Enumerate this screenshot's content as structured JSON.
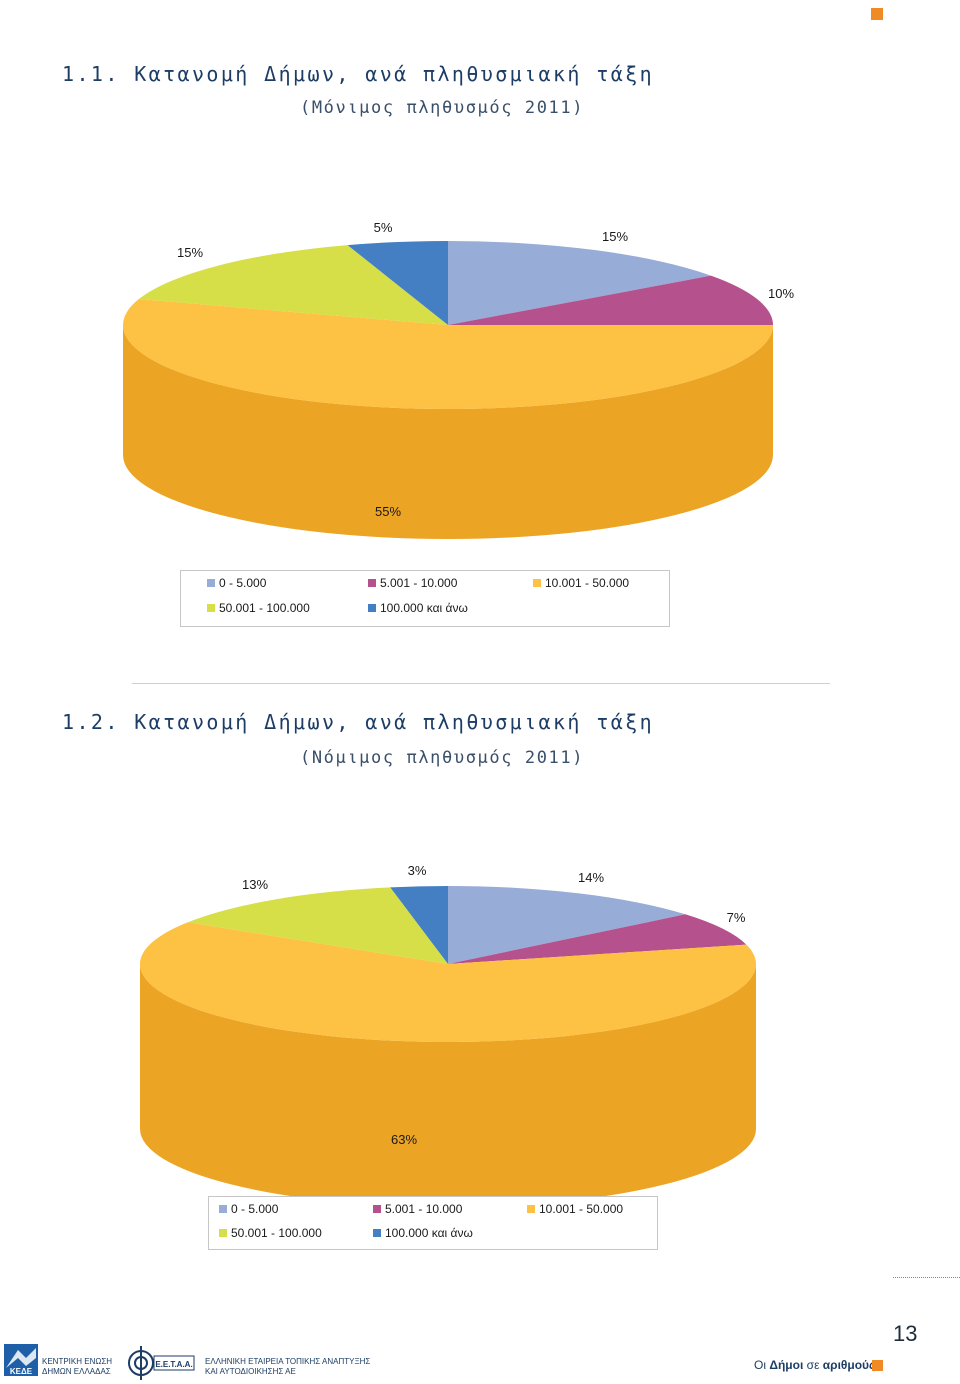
{
  "colors": {
    "series": [
      "#98ACD8",
      "#B5528E",
      "#FDC243",
      "#D6DF47",
      "#437FC2"
    ],
    "series_side": [
      "#7E92BE",
      "#963E74",
      "#EBA424",
      "#B5BE2E",
      "#2E66A6"
    ],
    "accent": "#F08A24"
  },
  "section1": {
    "title": "1.1.  Κατανομή Δήμων, ανά πληθυσμιακή τάξη",
    "subtitle": "(Μόνιμος πληθυσμός 2011)"
  },
  "section2": {
    "title": "1.2.  Κατανομή Δήμων, ανά πληθυσμιακή τάξη",
    "subtitle": "(Νόμιμος πληθυσμός 2011)"
  },
  "chart_data": [
    {
      "type": "pie",
      "title": "",
      "categories": [
        "0 - 5.000",
        "5.001 - 10.000",
        "10.001 - 50.000",
        "50.001 - 100.000",
        "100.000 και άνω"
      ],
      "values": [
        15,
        10,
        55,
        15,
        5
      ],
      "data_labels": [
        "15%",
        "10%",
        "55%",
        "15%",
        "5%"
      ],
      "legend_position": "bottom"
    },
    {
      "type": "pie",
      "title": "",
      "categories": [
        "0 - 5.000",
        "5.001 - 10.000",
        "10.001 - 50.000",
        "50.001 - 100.000",
        "100.000 και άνω"
      ],
      "values": [
        14,
        7,
        63,
        13,
        3
      ],
      "data_labels": [
        "14%",
        "7%",
        "63%",
        "13%",
        "3%"
      ],
      "legend_position": "bottom"
    }
  ],
  "footer": {
    "page_number": "13",
    "kede_line1": "ΚΕΝΤΡΙΚΗ ΕΝΩΣΗ",
    "kede_line2": "ΔΗΜΩΝ ΕΛΛΑΔΑΣ",
    "kede_logo_text": "ΚΕΔΕ",
    "eetaa_logo_text": "Ε.Ε.Τ.Α.Α.",
    "eetaa_line1": "ΕΛΛΗΝΙΚΗ ΕΤΑΙΡΕΙΑ ΤΟΠΙΚΗΣ ΑΝΑΠΤΥΞΗΣ",
    "eetaa_line2": "ΚΑΙ ΑΥΤΟΔΙΟΙΚΗΣΗΣ ΑΕ",
    "publication_prefix": "Οι",
    "publication_bold": "Δήμοι",
    "publication_middle": "σε",
    "publication_bold2": "αριθμούς"
  }
}
